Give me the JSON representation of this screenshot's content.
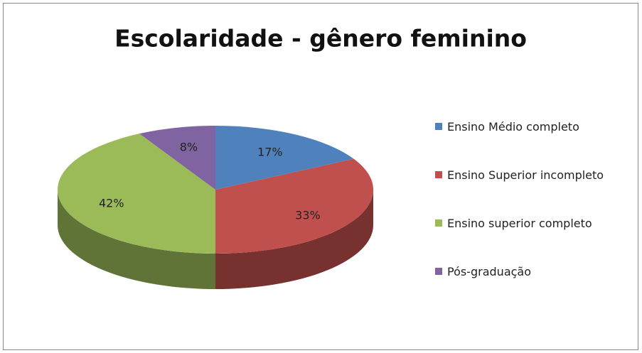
{
  "chart_data": {
    "type": "pie",
    "title": "Escolaridade - gênero feminino",
    "categories": [
      "Ensino Médio completo",
      "Ensino Superior incompleto",
      "Ensino superior completo",
      "Pós-graduação"
    ],
    "values": [
      17,
      33,
      42,
      8
    ],
    "value_labels": [
      "17%",
      "33%",
      "42%",
      "8%"
    ],
    "colors": [
      "#4f81bd",
      "#c0504d",
      "#9bbb59",
      "#8064a2"
    ],
    "legend": "right"
  }
}
